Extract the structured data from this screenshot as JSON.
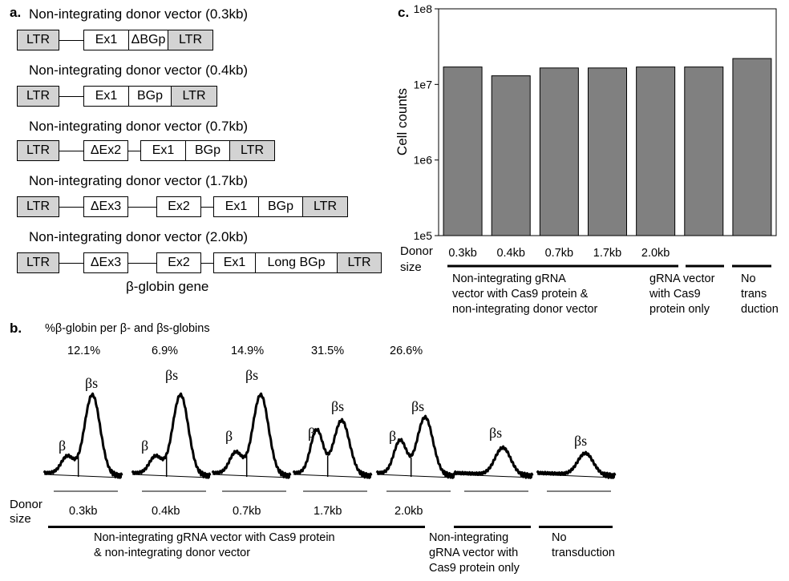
{
  "panel_a": {
    "label": "a.",
    "vectors": [
      {
        "title": "Non-integrating donor vector (0.3kb)",
        "elements": [
          "LTR",
          "Ex1",
          "ΔBGp",
          "LTR"
        ]
      },
      {
        "title": "Non-integrating donor vector (0.4kb)",
        "elements": [
          "LTR",
          "Ex1",
          "BGp",
          "LTR"
        ]
      },
      {
        "title": "Non-integrating donor vector (0.7kb)",
        "elements": [
          "LTR",
          "ΔEx2",
          "Ex1",
          "BGp",
          "LTR"
        ]
      },
      {
        "title": "Non-integrating donor vector (1.7kb)",
        "elements": [
          "LTR",
          "ΔEx3",
          "Ex2",
          "Ex1",
          "BGp",
          "LTR"
        ]
      },
      {
        "title": "Non-integrating donor vector (2.0kb)",
        "elements": [
          "LTR",
          "ΔEx3",
          "Ex2",
          "Ex1",
          "Long BGp",
          "LTR"
        ]
      }
    ],
    "gene_label": "β-globin gene"
  },
  "panel_b": {
    "label": "b.",
    "header": "%β-globin per β- and βs-globins",
    "percents": [
      "12.1%",
      "6.9%",
      "14.9%",
      "31.5%",
      "26.6%"
    ],
    "peak_beta": "β",
    "peak_betas": "βs",
    "donor_label_1": "Donor",
    "donor_label_2": "size",
    "sizes": [
      "0.3kb",
      "0.4kb",
      "0.7kb",
      "1.7kb",
      "2.0kb"
    ],
    "group_labels": [
      [
        "Non-integrating gRNA vector with Cas9 protein",
        "& non-integrating donor vector"
      ],
      [
        "Non-integrating",
        "gRNA vector with",
        "Cas9 protein only"
      ],
      [
        "No",
        "transduction"
      ]
    ],
    "traces": [
      {
        "beta": 0.22,
        "betas": 1.0,
        "has_beta": true
      },
      {
        "beta": 0.22,
        "betas": 1.0,
        "has_beta": true
      },
      {
        "beta": 0.27,
        "betas": 1.0,
        "has_beta": true
      },
      {
        "beta": 0.55,
        "betas": 0.68,
        "has_beta": true
      },
      {
        "beta": 0.42,
        "betas": 0.72,
        "has_beta": true
      },
      {
        "beta": 0,
        "betas": 0.34,
        "has_beta": false
      },
      {
        "beta": 0,
        "betas": 0.27,
        "has_beta": false
      }
    ]
  },
  "chart_data": {
    "type": "bar",
    "panel_label": "c.",
    "ylabel": "Cell counts",
    "yscale": "log",
    "ylim": [
      100000,
      100000000
    ],
    "yticks": [
      "1e5",
      "1e6",
      "1e7",
      "1e8"
    ],
    "categories": [
      "0.3kb",
      "0.4kb",
      "0.7kb",
      "1.7kb",
      "2.0kb",
      "",
      ""
    ],
    "values": [
      17000000,
      13000000,
      16500000,
      16500000,
      17000000,
      17000000,
      22000000
    ],
    "bar_color": "#808080",
    "donor_label_1": "Donor",
    "donor_label_2": "size",
    "group_labels": [
      [
        "Non-integrating gRNA",
        "vector with Cas9 protein &",
        "non-integrating donor vector"
      ],
      [
        "gRNA vector",
        "with Cas9",
        "protein only"
      ],
      [
        "No",
        "trans",
        "duction"
      ]
    ]
  }
}
